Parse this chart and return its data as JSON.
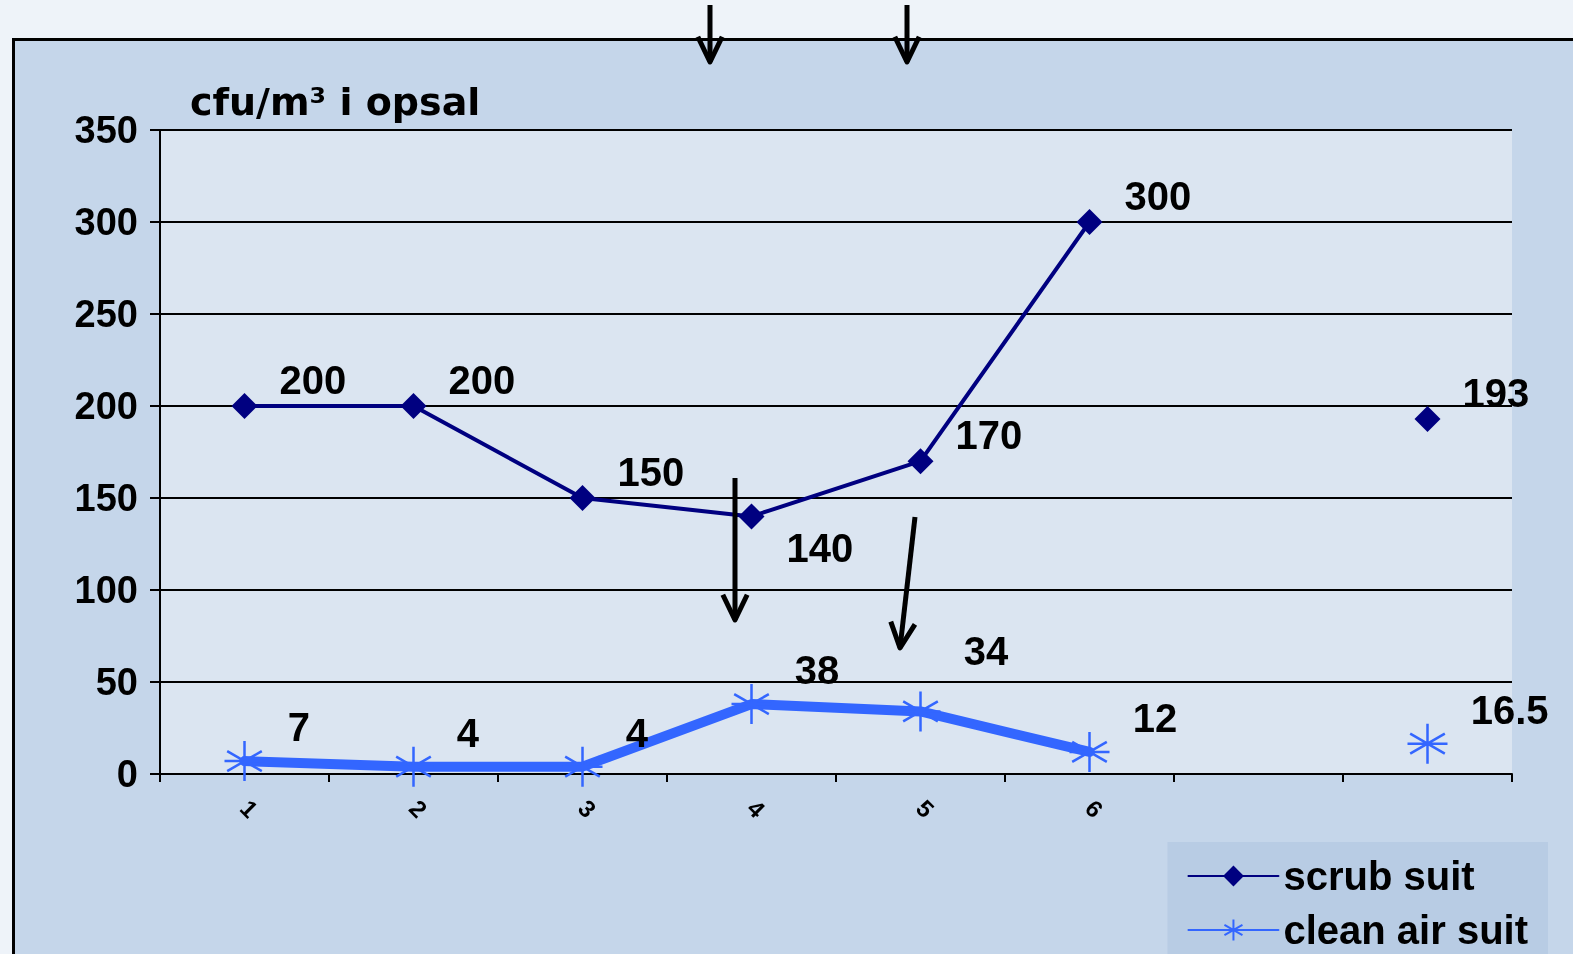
{
  "chart_data": {
    "type": "line",
    "ylabel": "cfu/m³ i opsal",
    "categories": [
      "1",
      "2",
      "3",
      "4",
      "5",
      "6",
      null,
      null
    ],
    "series": [
      {
        "name": "scrub suit",
        "color": "#000080",
        "marker": "diamond",
        "values": [
          200,
          200,
          150,
          140,
          170,
          300,
          null,
          193
        ]
      },
      {
        "name": "clean air suit",
        "color": "#3366ff",
        "marker": "cross",
        "values": [
          7,
          4,
          4,
          38,
          34,
          12,
          null,
          16.5
        ]
      }
    ],
    "ylim": [
      0,
      350
    ],
    "yticks": [
      0,
      50,
      100,
      150,
      200,
      250,
      300,
      350
    ],
    "grid": "y",
    "legend": "bottom right",
    "data_labels": true
  }
}
